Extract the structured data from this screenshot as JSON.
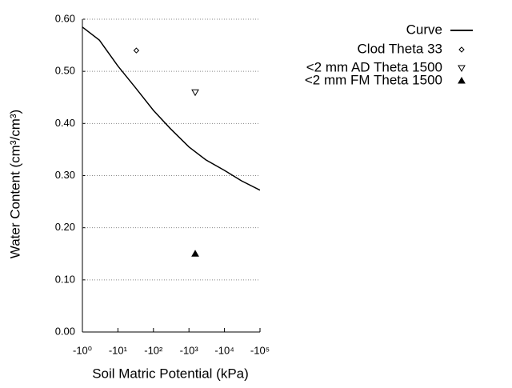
{
  "chart_data": {
    "type": "scatter",
    "x_label": "Soil Matric Potential (kPa)",
    "y_label": "Water Content (cm³/cm³)",
    "x_scale": "log",
    "xlim": [
      -1,
      -100000
    ],
    "xticks": [
      {
        "value": -1,
        "label": "-10⁰"
      },
      {
        "value": -10,
        "label": "-10¹"
      },
      {
        "value": -100,
        "label": "-10²"
      },
      {
        "value": -1000,
        "label": "-10³"
      },
      {
        "value": -10000,
        "label": "-10⁴"
      },
      {
        "value": -100000,
        "label": "-10⁵"
      }
    ],
    "ylim": [
      0,
      0.6
    ],
    "yticks": [
      {
        "value": 0,
        "label": "0.00"
      },
      {
        "value": 0.1,
        "label": "0.10"
      },
      {
        "value": 0.2,
        "label": "0.20"
      },
      {
        "value": 0.3,
        "label": "0.30"
      },
      {
        "value": 0.4,
        "label": "0.40"
      },
      {
        "value": 0.5,
        "label": "0.50"
      },
      {
        "value": 0.6,
        "label": "0.60"
      }
    ],
    "grid": true,
    "legend_position": "right",
    "series": [
      {
        "name": "Curve",
        "style": "line",
        "color": "#000000",
        "x": [
          -1,
          -3,
          -10,
          -30,
          -100,
          -300,
          -1000,
          -3000,
          -10000,
          -30000,
          -100000
        ],
        "values": [
          0.585,
          0.56,
          0.51,
          0.47,
          0.425,
          0.39,
          0.355,
          0.33,
          0.31,
          0.29,
          0.272
        ]
      },
      {
        "name": "Clod Theta 33",
        "style": "diamond",
        "color": "#000000",
        "x": [
          -33
        ],
        "values": [
          0.54
        ]
      },
      {
        "name": "<2 mm AD Theta 1500",
        "style": "triangle-down",
        "color": "#000000",
        "x": [
          -1500
        ],
        "values": [
          0.46
        ]
      },
      {
        "name": "<2 mm FM Theta 1500",
        "style": "triangle-up",
        "color": "#000000",
        "x": [
          -1500
        ],
        "values": [
          0.15
        ]
      }
    ]
  }
}
